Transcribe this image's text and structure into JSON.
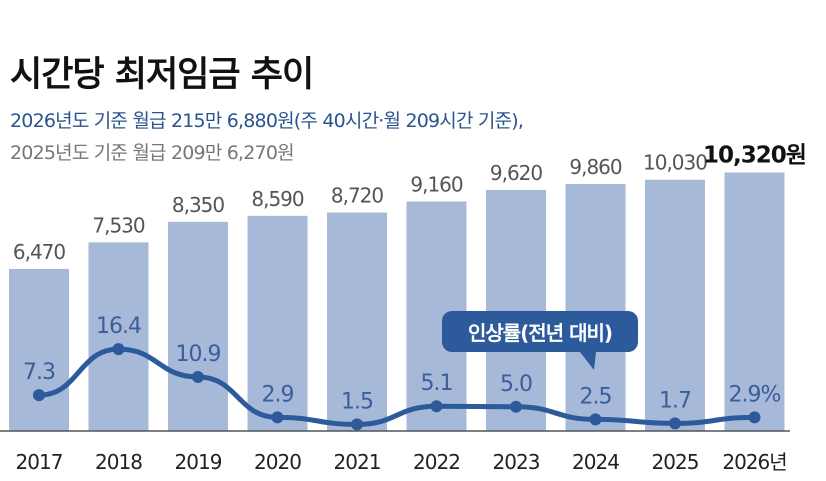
{
  "title": "시간당 최저임금 추이",
  "subtitle_line1": "2026년도 기준 월급 215만 6,880원(주 40시간·월 209시간 기준),",
  "subtitle_line2": "2025년도 기준 월급 209만 6,270원",
  "colors": {
    "bar": "#a7b9d8",
    "line": "#2c5a9b",
    "rate_label": "#3a5e9b",
    "callout": "#2c5a9b"
  },
  "chart_data": {
    "type": "bar+line",
    "categories": [
      "2017",
      "2018",
      "2019",
      "2020",
      "2021",
      "2022",
      "2023",
      "2024",
      "2025",
      "2026년"
    ],
    "series": [
      {
        "type": "bar",
        "unit": "원",
        "values": [
          6470,
          7530,
          8350,
          8590,
          8720,
          9160,
          9620,
          9860,
          10030,
          10320
        ],
        "labels": [
          "6,470",
          "7,530",
          "8,350",
          "8,590",
          "8,720",
          "9,160",
          "9,620",
          "9,860",
          "10,030",
          "10,320원"
        ]
      },
      {
        "type": "line",
        "name": "인상률(전년 대비)",
        "unit": "%",
        "values": [
          7.3,
          16.4,
          10.9,
          2.9,
          1.5,
          5.1,
          5.0,
          2.5,
          1.7,
          2.9
        ],
        "labels": [
          "7.3",
          "16.4",
          "10.9",
          "2.9",
          "1.5",
          "5.1",
          "5.0",
          "2.5",
          "1.7",
          "2.9%"
        ]
      }
    ],
    "legend_callout": "인상률(전년 대비)",
    "grid": false
  }
}
